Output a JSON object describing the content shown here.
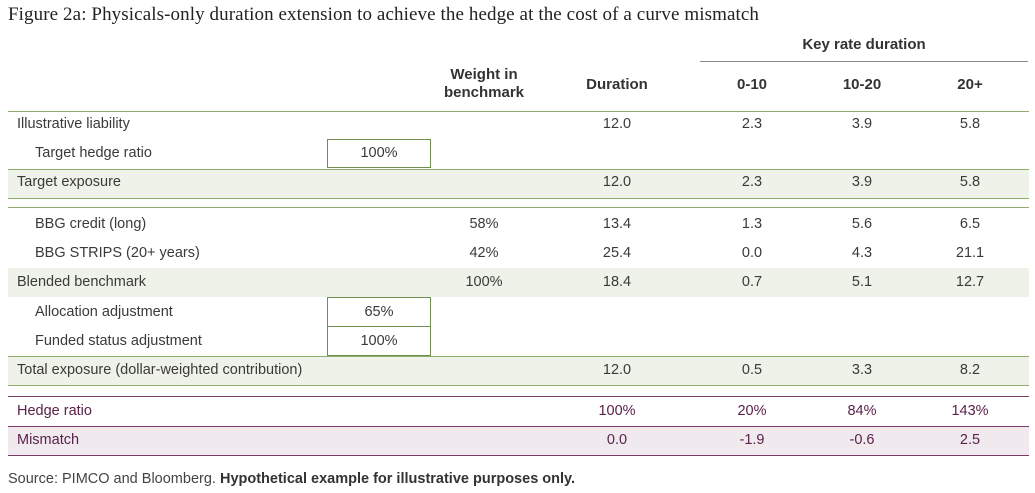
{
  "title": "Figure 2a: Physicals-only duration extension to achieve the hedge at the cost of a curve mismatch",
  "headers": {
    "group": "Key rate duration",
    "weight_line1": "Weight in",
    "weight_line2": "benchmark",
    "duration": "Duration",
    "krd_0_10": "0-10",
    "krd_10_20": "10-20",
    "krd_20_plus": "20+"
  },
  "rows": [
    {
      "label": "Illustrative liability",
      "box": "",
      "weight": "",
      "duration": "12.0",
      "k1": "2.3",
      "k2": "3.9",
      "k3": "5.8"
    },
    {
      "label": "Target hedge ratio",
      "box": "100%",
      "weight": "",
      "duration": "",
      "k1": "",
      "k2": "",
      "k3": ""
    },
    {
      "label": "Target exposure",
      "box": "",
      "weight": "",
      "duration": "12.0",
      "k1": "2.3",
      "k2": "3.9",
      "k3": "5.8"
    },
    {
      "label": "BBG credit (long)",
      "box": "",
      "weight": "58%",
      "duration": "13.4",
      "k1": "1.3",
      "k2": "5.6",
      "k3": "6.5"
    },
    {
      "label": "BBG STRIPS (20+ years)",
      "box": "",
      "weight": "42%",
      "duration": "25.4",
      "k1": "0.0",
      "k2": "4.3",
      "k3": "21.1"
    },
    {
      "label": "Blended benchmark",
      "box": "",
      "weight": "100%",
      "duration": "18.4",
      "k1": "0.7",
      "k2": "5.1",
      "k3": "12.7"
    },
    {
      "label": "Allocation adjustment",
      "box": "65%",
      "weight": "",
      "duration": "",
      "k1": "",
      "k2": "",
      "k3": ""
    },
    {
      "label": "Funded status adjustment",
      "box": "100%",
      "weight": "",
      "duration": "",
      "k1": "",
      "k2": "",
      "k3": ""
    },
    {
      "label": "Total exposure (dollar-weighted contribution)",
      "box": "",
      "weight": "",
      "duration": "12.0",
      "k1": "0.5",
      "k2": "3.3",
      "k3": "8.2"
    },
    {
      "label": "Hedge ratio",
      "box": "",
      "weight": "",
      "duration": "100%",
      "k1": "20%",
      "k2": "84%",
      "k3": "143%"
    },
    {
      "label": "Mismatch",
      "box": "",
      "weight": "",
      "duration": "0.0",
      "k1": "-1.9",
      "k2": "-0.6",
      "k3": "2.5"
    }
  ],
  "source_text": "Source: PIMCO and Bloomberg.",
  "source_bold": "Hypothetical example for illustrative purposes only."
}
